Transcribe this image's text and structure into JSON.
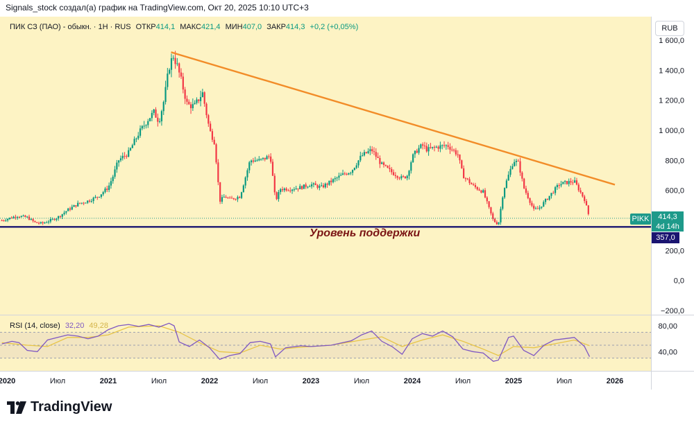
{
  "attribution": "Signals_stock создал(а) график на TradingView.com, Окт 20, 2025 10:10 UTC+3",
  "legend": {
    "instrument": "ПИК СЗ (ПАО) - обыкн. · 1Н · RUS",
    "open_label": "ОТКР",
    "open": "414,1",
    "high_label": "МАКС",
    "high": "421,4",
    "low_label": "МИН",
    "low": "407,0",
    "close_label": "ЗАКР",
    "close": "414,3",
    "change": "+0,2 (+0,05%)"
  },
  "currency": "RUB",
  "rsi_legend": {
    "name": "RSI (14, close)",
    "value": "32,20",
    "ma_value": "49,28"
  },
  "support_label": "Уровень поддержки",
  "badges": {
    "ticker": "PIKK",
    "last_price": "414,3",
    "countdown": "4d 14h",
    "support": "357,0"
  },
  "footer_brand": "TradingView",
  "colors": {
    "background": "#fdf3c4",
    "candle_up": "#089981",
    "candle_down": "#f23645",
    "trendline": "#f28c28",
    "support_line": "#1a1470",
    "rsi_line": "#7e57c2",
    "rsi_ma": "#e8c547",
    "rsi_band": "#efe1c0"
  },
  "chart_data": [
    {
      "type": "candlestick",
      "title": "ПИК СЗ (ПАО) - обыкн.",
      "ylim": [
        -200,
        1600
      ],
      "y_ticks": [
        {
          "value": 1600,
          "label": "1 600,0"
        },
        {
          "value": 1400,
          "label": "1 400,0"
        },
        {
          "value": 1200,
          "label": "1 200,0"
        },
        {
          "value": 1000,
          "label": "1 000,0"
        },
        {
          "value": 800,
          "label": "800,0"
        },
        {
          "value": 600,
          "label": "600,0"
        },
        {
          "value": 200,
          "label": "200,0"
        },
        {
          "value": 0,
          "label": "0,0"
        },
        {
          "value": -200,
          "label": "−200,0"
        }
      ],
      "x_range": [
        2020.0,
        2026.25
      ],
      "x_ticks": [
        {
          "value": 2020.0,
          "label": "2020"
        },
        {
          "value": 2020.5,
          "label": "Июл"
        },
        {
          "value": 2021.0,
          "label": "2021"
        },
        {
          "value": 2021.5,
          "label": "Июл"
        },
        {
          "value": 2022.0,
          "label": "2022"
        },
        {
          "value": 2022.5,
          "label": "Июл"
        },
        {
          "value": 2023.0,
          "label": "2023"
        },
        {
          "value": 2023.5,
          "label": "Июл"
        },
        {
          "value": 2024.0,
          "label": "2024"
        },
        {
          "value": 2024.5,
          "label": "Июл"
        },
        {
          "value": 2025.0,
          "label": "2025"
        },
        {
          "value": 2025.5,
          "label": "Июл"
        },
        {
          "value": 2026.0,
          "label": "2026"
        }
      ],
      "price_path": [
        [
          2019.95,
          400
        ],
        [
          2020.1,
          430
        ],
        [
          2020.2,
          420
        ],
        [
          2020.28,
          385
        ],
        [
          2020.35,
          380
        ],
        [
          2020.5,
          420
        ],
        [
          2020.6,
          470
        ],
        [
          2020.7,
          510
        ],
        [
          2020.8,
          530
        ],
        [
          2020.9,
          560
        ],
        [
          2021.0,
          620
        ],
        [
          2021.05,
          700
        ],
        [
          2021.1,
          800
        ],
        [
          2021.2,
          850
        ],
        [
          2021.3,
          980
        ],
        [
          2021.4,
          1080
        ],
        [
          2021.45,
          1120
        ],
        [
          2021.5,
          1060
        ],
        [
          2021.55,
          1200
        ],
        [
          2021.6,
          1420
        ],
        [
          2021.64,
          1500
        ],
        [
          2021.68,
          1430
        ],
        [
          2021.72,
          1330
        ],
        [
          2021.78,
          1170
        ],
        [
          2021.85,
          1160
        ],
        [
          2021.93,
          1250
        ],
        [
          2022.0,
          1000
        ],
        [
          2022.05,
          920
        ],
        [
          2022.1,
          530
        ],
        [
          2022.15,
          560
        ],
        [
          2022.2,
          540
        ],
        [
          2022.3,
          560
        ],
        [
          2022.4,
          800
        ],
        [
          2022.5,
          800
        ],
        [
          2022.6,
          830
        ],
        [
          2022.65,
          530
        ],
        [
          2022.7,
          610
        ],
        [
          2022.8,
          610
        ],
        [
          2022.9,
          620
        ],
        [
          2023.0,
          640
        ],
        [
          2023.1,
          620
        ],
        [
          2023.2,
          660
        ],
        [
          2023.3,
          700
        ],
        [
          2023.4,
          730
        ],
        [
          2023.5,
          830
        ],
        [
          2023.6,
          870
        ],
        [
          2023.7,
          770
        ],
        [
          2023.8,
          720
        ],
        [
          2023.9,
          680
        ],
        [
          2023.95,
          700
        ],
        [
          2024.0,
          820
        ],
        [
          2024.05,
          870
        ],
        [
          2024.1,
          900
        ],
        [
          2024.15,
          870
        ],
        [
          2024.25,
          890
        ],
        [
          2024.35,
          900
        ],
        [
          2024.45,
          840
        ],
        [
          2024.5,
          700
        ],
        [
          2024.6,
          630
        ],
        [
          2024.7,
          590
        ],
        [
          2024.8,
          400
        ],
        [
          2024.85,
          372
        ],
        [
          2024.9,
          600
        ],
        [
          2025.0,
          800
        ],
        [
          2025.05,
          780
        ],
        [
          2025.1,
          620
        ],
        [
          2025.2,
          470
        ],
        [
          2025.25,
          480
        ],
        [
          2025.35,
          560
        ],
        [
          2025.45,
          640
        ],
        [
          2025.5,
          650
        ],
        [
          2025.6,
          660
        ],
        [
          2025.65,
          600
        ],
        [
          2025.7,
          540
        ],
        [
          2025.75,
          414
        ]
      ],
      "trendline": {
        "from": [
          2021.62,
          1520
        ],
        "to": [
          2026.0,
          638
        ]
      },
      "support_level": 357.0,
      "last_price": 414.3
    },
    {
      "type": "line",
      "title": "RSI (14, close)",
      "ylim": [
        20,
        90
      ],
      "y_ticks": [
        {
          "value": 80,
          "label": "80,00"
        },
        {
          "value": 40,
          "label": "40,00"
        }
      ],
      "bands": {
        "upper": 70,
        "middle": 50,
        "lower": 30
      },
      "rsi": [
        [
          2019.95,
          52
        ],
        [
          2020.05,
          56
        ],
        [
          2020.12,
          54
        ],
        [
          2020.2,
          42
        ],
        [
          2020.3,
          40
        ],
        [
          2020.4,
          58
        ],
        [
          2020.5,
          62
        ],
        [
          2020.6,
          66
        ],
        [
          2020.7,
          64
        ],
        [
          2020.8,
          60
        ],
        [
          2020.9,
          64
        ],
        [
          2021.0,
          74
        ],
        [
          2021.1,
          80
        ],
        [
          2021.2,
          82
        ],
        [
          2021.3,
          79
        ],
        [
          2021.4,
          82
        ],
        [
          2021.5,
          78
        ],
        [
          2021.6,
          84
        ],
        [
          2021.65,
          80
        ],
        [
          2021.7,
          55
        ],
        [
          2021.8,
          48
        ],
        [
          2021.9,
          58
        ],
        [
          2022.0,
          46
        ],
        [
          2022.1,
          28
        ],
        [
          2022.2,
          34
        ],
        [
          2022.3,
          37
        ],
        [
          2022.4,
          54
        ],
        [
          2022.5,
          56
        ],
        [
          2022.6,
          52
        ],
        [
          2022.65,
          32
        ],
        [
          2022.75,
          46
        ],
        [
          2022.9,
          49
        ],
        [
          2023.0,
          48
        ],
        [
          2023.2,
          50
        ],
        [
          2023.4,
          57
        ],
        [
          2023.5,
          66
        ],
        [
          2023.6,
          72
        ],
        [
          2023.7,
          56
        ],
        [
          2023.8,
          48
        ],
        [
          2023.9,
          36
        ],
        [
          2024.0,
          60
        ],
        [
          2024.1,
          68
        ],
        [
          2024.2,
          64
        ],
        [
          2024.3,
          72
        ],
        [
          2024.4,
          63
        ],
        [
          2024.5,
          44
        ],
        [
          2024.6,
          40
        ],
        [
          2024.7,
          38
        ],
        [
          2024.8,
          25
        ],
        [
          2024.85,
          27
        ],
        [
          2024.95,
          62
        ],
        [
          2025.0,
          64
        ],
        [
          2025.1,
          42
        ],
        [
          2025.2,
          34
        ],
        [
          2025.3,
          50
        ],
        [
          2025.4,
          58
        ],
        [
          2025.5,
          60
        ],
        [
          2025.6,
          62
        ],
        [
          2025.7,
          48
        ],
        [
          2025.75,
          32.2
        ]
      ],
      "rsi_ma": [
        [
          2019.95,
          54
        ],
        [
          2020.2,
          50
        ],
        [
          2020.4,
          48
        ],
        [
          2020.6,
          62
        ],
        [
          2020.8,
          62
        ],
        [
          2021.0,
          66
        ],
        [
          2021.2,
          78
        ],
        [
          2021.5,
          80
        ],
        [
          2021.7,
          70
        ],
        [
          2021.9,
          54
        ],
        [
          2022.1,
          40
        ],
        [
          2022.3,
          38
        ],
        [
          2022.5,
          50
        ],
        [
          2022.7,
          44
        ],
        [
          2022.9,
          47
        ],
        [
          2023.2,
          50
        ],
        [
          2023.5,
          58
        ],
        [
          2023.7,
          63
        ],
        [
          2023.9,
          48
        ],
        [
          2024.1,
          58
        ],
        [
          2024.3,
          66
        ],
        [
          2024.5,
          56
        ],
        [
          2024.7,
          44
        ],
        [
          2024.85,
          34
        ],
        [
          2025.0,
          48
        ],
        [
          2025.2,
          46
        ],
        [
          2025.4,
          52
        ],
        [
          2025.6,
          58
        ],
        [
          2025.75,
          49.28
        ]
      ]
    }
  ]
}
